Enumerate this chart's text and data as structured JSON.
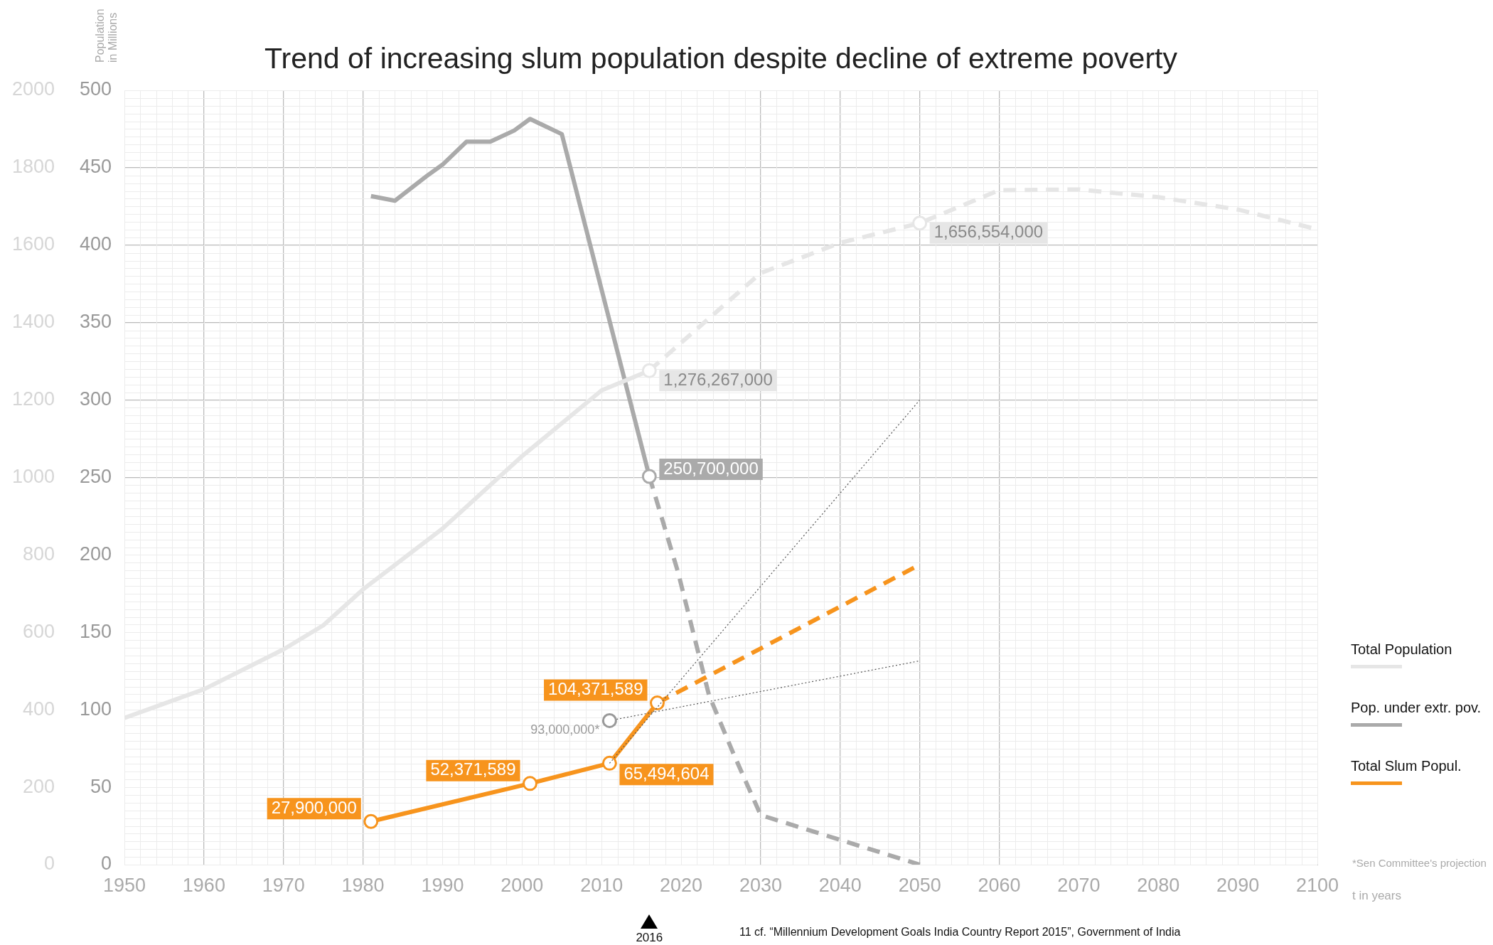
{
  "chart_data": {
    "type": "line",
    "title": "Trend of increasing slum population despite decline of extreme poverty",
    "ylabel": "Population in Millions",
    "xlabel": "t in years",
    "xlim": [
      1950,
      2100
    ],
    "xticks": [
      1950,
      1960,
      1970,
      1980,
      1990,
      2000,
      2010,
      2020,
      2030,
      2040,
      2050,
      2060,
      2070,
      2080,
      2090,
      2100
    ],
    "ylim": [
      0,
      500
    ],
    "yticks": [
      0,
      50,
      100,
      150,
      200,
      250,
      300,
      350,
      400,
      450,
      500
    ],
    "y2lim": [
      0,
      2000
    ],
    "y2ticks": [
      0,
      200,
      400,
      600,
      800,
      1000,
      1200,
      1400,
      1600,
      1800,
      2000
    ],
    "grid": true,
    "legend": "right",
    "series": [
      {
        "name": "Total Population",
        "color": "#e6e6e6",
        "axis": "y2",
        "line_style": "solid",
        "x": [
          1950,
          1960,
          1970,
          1975,
          1980,
          1990,
          2000,
          2010,
          2016
        ],
        "values": [
          379,
          453,
          556,
          618,
          711,
          868,
          1055,
          1225,
          1276
        ]
      },
      {
        "color": "#e6e6e6",
        "axis": "y2",
        "line_style": "dashed",
        "x": [
          2016,
          2030,
          2040,
          2050,
          2060,
          2070,
          2080,
          2090,
          2100
        ],
        "values": [
          1276,
          1528,
          1606,
          1657,
          1742,
          1744,
          1724,
          1692,
          1641
        ]
      },
      {
        "type": "scatter",
        "color": "#e6e6e6",
        "axis": "y2",
        "marker": "circle",
        "x": [
          2016,
          2050
        ],
        "values": [
          1276,
          1657
        ]
      },
      {
        "name": "Pop. under extr. pov.",
        "color": "#aaaaaa",
        "axis": "y",
        "line_style": "solid",
        "x": [
          1981,
          1984,
          1988,
          1990,
          1993,
          1996,
          1999,
          2001,
          2005,
          2016
        ],
        "values": [
          431.7,
          428.7,
          444.6,
          452,
          466.8,
          466.8,
          474,
          481.5,
          471.7,
          250.7
        ]
      },
      {
        "color": "#aaaaaa",
        "axis": "y",
        "line_style": "dashed",
        "x": [
          2016,
          2019.6,
          2023.5,
          2026.5,
          2030,
          2050
        ],
        "values": [
          250.7,
          189,
          109.5,
          72.6,
          32,
          0
        ]
      },
      {
        "type": "scatter",
        "color": "#aaaaaa",
        "axis": "y",
        "marker": "circle",
        "x": [
          2016
        ],
        "values": [
          250.7
        ]
      },
      {
        "color": "#555555",
        "axis": "y",
        "line_style": "dotted",
        "x": [
          2011,
          2050
        ],
        "values": [
          93,
          131.6
        ]
      },
      {
        "type": "scatter",
        "color": "#999999",
        "axis": "y",
        "marker": "circle",
        "x": [
          2011
        ],
        "values": [
          93
        ]
      },
      {
        "color": "#555555",
        "axis": "y",
        "line_style": "dotted",
        "x": [
          2011,
          2050
        ],
        "values": [
          65.5,
          300
        ]
      },
      {
        "name": "Total Slum Popul.",
        "color": "#f7941d",
        "axis": "y",
        "line_style": "solid",
        "marker": "circle",
        "x": [
          1981,
          2001,
          2011,
          2017
        ],
        "values": [
          27.9,
          52.4,
          65.5,
          104.4
        ]
      },
      {
        "color": "#f7941d",
        "axis": "y",
        "line_style": "dashed",
        "x": [
          2017,
          2050
        ],
        "values": [
          104.4,
          193.7
        ]
      }
    ],
    "annotations": [
      "1,276,267,000",
      "1,656,554,000",
      {
        "text": "250,700,000",
        "x": 2016,
        "y": 250.7
      },
      {
        "text": "93,000,000*",
        "x": 2011,
        "y": 93
      },
      {
        "text": "27,900,000",
        "x": 1981,
        "y": 27.9
      },
      {
        "text": "52,371,589",
        "x": 2001,
        "y": 52.4
      },
      {
        "text": "65,494,604",
        "x": 2011,
        "y": 65.5
      },
      {
        "text": "104,371,589",
        "x": 2017,
        "y": 104.4
      },
      "2016",
      "*Sen Committee's projection",
      "11 cf. “Millennium Development Goals India Country Report 2015”, Government of India"
    ]
  }
}
